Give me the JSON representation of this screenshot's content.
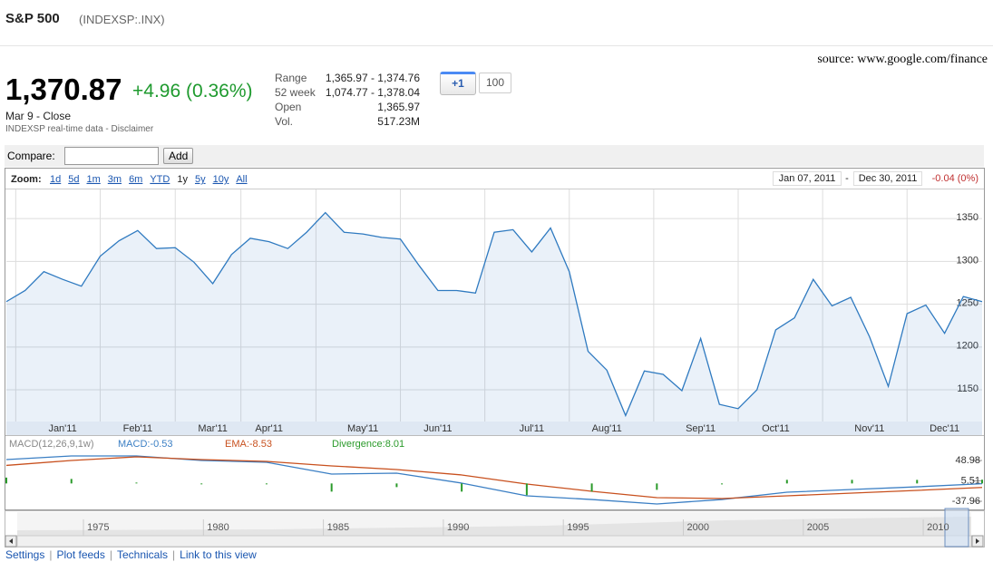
{
  "header": {
    "title": "S&P 500",
    "symbol": "(INDEXSP:.INX)"
  },
  "source": "source: www.google.com/finance",
  "quote": {
    "price": "1,370.87",
    "change": "+4.96 (0.36%)",
    "time": "Mar 9 - Close",
    "disclaimer": "INDEXSP real-time data - Disclaimer"
  },
  "stats": [
    [
      "Range",
      "1,365.97 - 1,374.76"
    ],
    [
      "52 week",
      "1,074.77 - 1,378.04"
    ],
    [
      "Open",
      "1,365.97"
    ],
    [
      "Vol.",
      "517.23M"
    ]
  ],
  "plusone": {
    "label": "+1",
    "count": "100"
  },
  "compare": {
    "label": "Compare:",
    "button": "Add"
  },
  "zoom": {
    "label": "Zoom:",
    "options": [
      "1d",
      "5d",
      "1m",
      "3m",
      "6m",
      "YTD",
      "1y",
      "5y",
      "10y",
      "All"
    ],
    "selected": 6
  },
  "range": {
    "start": "Jan 07, 2011",
    "separator": "-",
    "end": "Dec 30, 2011",
    "change": "-0.04 (0%)"
  },
  "chart_data": [
    {
      "type": "line",
      "categories": [
        null,
        null,
        null,
        "Jan'11",
        null,
        null,
        null,
        "Feb'11",
        null,
        null,
        null,
        "Mar'11",
        null,
        null,
        "Apr'11",
        null,
        null,
        null,
        null,
        "May'11",
        null,
        null,
        null,
        "Jun'11",
        null,
        null,
        null,
        null,
        "Jul'11",
        null,
        null,
        null,
        "Aug'11",
        null,
        null,
        null,
        null,
        "Sep'11",
        null,
        null,
        null,
        "Oct'11",
        null,
        null,
        null,
        null,
        "Nov'11",
        null,
        null,
        null,
        "Dec'11",
        null,
        null
      ],
      "values": [
        1253,
        1266,
        1288,
        1279,
        1271,
        1306,
        1324,
        1336,
        1315,
        1316,
        1299,
        1274,
        1308,
        1327,
        1323,
        1315,
        1334,
        1357,
        1334,
        1332,
        1328,
        1326,
        1295,
        1266,
        1266,
        1263,
        1334,
        1337,
        1311,
        1339,
        1288,
        1195,
        1173,
        1120,
        1172,
        1168,
        1149,
        1210,
        1133,
        1128,
        1150,
        1220,
        1234,
        1279,
        1248,
        1258,
        1212,
        1154,
        1239,
        1249,
        1216,
        1259,
        1253
      ],
      "color": "#2f7ac0",
      "ylim": [
        1113,
        1384
      ],
      "yticks": [
        1150,
        1200,
        1250,
        1300,
        1350
      ],
      "grid": true
    },
    {
      "type": "line",
      "title": "MACD(12,26,9,1w)",
      "series": [
        {
          "name": "MACD:-0.53",
          "color": "#3b7fc4",
          "values": [
            50.9,
            58.6,
            58.6,
            49.0,
            45.1,
            20.0,
            21.9,
            0.7,
            -26.4,
            -34.2,
            -43.8,
            -34.2,
            -18.7,
            -12.9,
            -7.2,
            -0.5
          ]
        },
        {
          "name": "EMA:-8.53",
          "color": "#c8501e",
          "values": [
            38.4,
            49.0,
            56.7,
            50.9,
            47.0,
            37.4,
            29.7,
            18.1,
            -1.3,
            -16.7,
            -30.2,
            -32.2,
            -26.4,
            -20.6,
            -14.8,
            -8.5
          ]
        },
        {
          "name": "Divergence:8.01",
          "color": "#2a9a2a",
          "type": "bar",
          "values": [
            12.5,
            9.6,
            1.9,
            -1.9,
            -1.9,
            -17.4,
            -7.8,
            -17.4,
            -25.1,
            -17.5,
            -13.6,
            -2.0,
            7.7,
            7.7,
            7.6,
            8.0
          ]
        }
      ],
      "ylim": [
        -51.5,
        64.4
      ],
      "yticks": [
        48.98,
        5.51,
        -37.96
      ]
    }
  ],
  "navigator": {
    "years": [
      "1975",
      "1980",
      "1985",
      "1990",
      "1995",
      "2000",
      "2005",
      "2010"
    ]
  },
  "links": [
    "Settings",
    "Plot feeds",
    "Technicals",
    "Link to this view"
  ]
}
